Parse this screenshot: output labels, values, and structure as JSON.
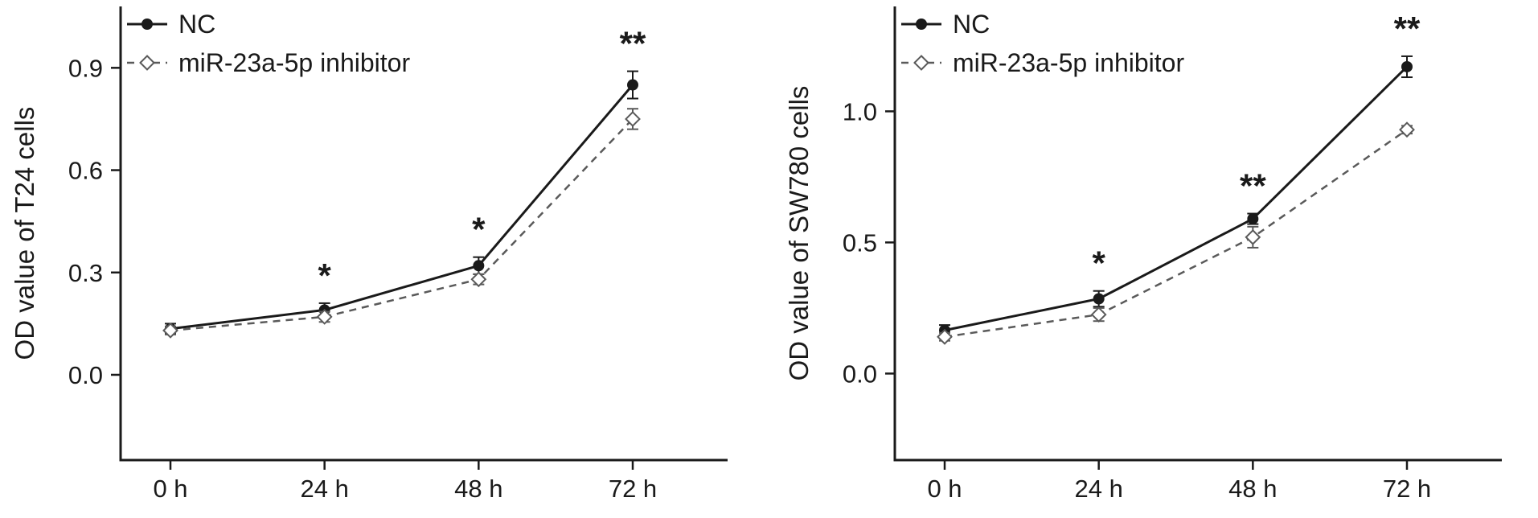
{
  "page": {
    "background_color": "#ffffff",
    "text_color": "#1a1a1a"
  },
  "chart_data": [
    {
      "type": "line",
      "title": "",
      "xlabel": "",
      "ylabel": "OD value of T24 cells",
      "categories": [
        "0 h",
        "24 h",
        "48 h",
        "72 h"
      ],
      "ytick_labels": [
        "0.0",
        "0.3",
        "0.6",
        "0.9"
      ],
      "ytick_values": [
        0.0,
        0.3,
        0.6,
        0.9
      ],
      "ylim": [
        -0.25,
        1.08
      ],
      "grid": false,
      "legend_position": "top-left",
      "series": [
        {
          "name": "NC",
          "values": [
            0.135,
            0.19,
            0.32,
            0.85
          ],
          "errors": [
            0.015,
            0.02,
            0.025,
            0.04
          ],
          "marker": "filled-circle",
          "line_style": "solid",
          "color": "#1a1a1a"
        },
        {
          "name": "miR-23a-5p inhibitor",
          "values": [
            0.13,
            0.17,
            0.28,
            0.75
          ],
          "errors": [
            0.012,
            0.015,
            0.015,
            0.03
          ],
          "marker": "open-diamond",
          "line_style": "dashed",
          "color": "#5a5a5a"
        }
      ],
      "annotations": [
        {
          "x_index": 1,
          "text": "*"
        },
        {
          "x_index": 2,
          "text": "*"
        },
        {
          "x_index": 3,
          "text": "**"
        }
      ]
    },
    {
      "type": "line",
      "title": "",
      "xlabel": "",
      "ylabel": "OD value of SW780 cells",
      "categories": [
        "0 h",
        "24 h",
        "48 h",
        "72 h"
      ],
      "ytick_labels": [
        "0.0",
        "0.5",
        "1.0"
      ],
      "ytick_values": [
        0.0,
        0.5,
        1.0
      ],
      "ylim": [
        -0.33,
        1.4
      ],
      "grid": false,
      "legend_position": "top-left",
      "series": [
        {
          "name": "NC",
          "values": [
            0.165,
            0.285,
            0.59,
            1.17
          ],
          "errors": [
            0.02,
            0.03,
            0.02,
            0.04
          ],
          "marker": "filled-circle",
          "line_style": "solid",
          "color": "#1a1a1a"
        },
        {
          "name": "miR-23a-5p inhibitor",
          "values": [
            0.14,
            0.225,
            0.52,
            0.93
          ],
          "errors": [
            0.015,
            0.025,
            0.04,
            0.015
          ],
          "marker": "open-diamond",
          "line_style": "dashed",
          "color": "#5a5a5a"
        }
      ],
      "annotations": [
        {
          "x_index": 1,
          "text": "*"
        },
        {
          "x_index": 2,
          "text": "**"
        },
        {
          "x_index": 3,
          "text": "**"
        }
      ]
    }
  ]
}
